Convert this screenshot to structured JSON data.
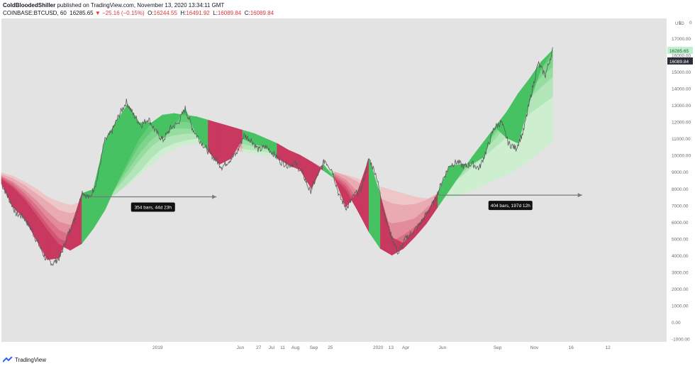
{
  "header": {
    "author": "ColdBloodedShiller",
    "published": "published on TradingView.com, November 13, 2020 13:34:11 GMT",
    "symbol": "COINBASE:BTCUSD, 60",
    "last": "16285.65",
    "change": "▼ −25.16 (−0.15%)",
    "o_label": "O:",
    "o_value": "16244.55",
    "h_label": "H:",
    "h_value": "16491.92",
    "l_label": "L:",
    "l_value": "16089.84",
    "c_label": "C:",
    "c_value": "16089.84"
  },
  "footer": {
    "brand": "TradingView"
  },
  "colors": {
    "background": "#e3e3e3",
    "up_band": "#35c466",
    "down_band": "#e0435f",
    "price_line": "#5a5a5a",
    "current_price_tag": "#2ecc71",
    "low_tag": "#2a2e39"
  },
  "chart_data": {
    "type": "line",
    "title": "",
    "currency": "USD",
    "y_ticks": [
      17000,
      16000,
      15000,
      14000,
      13000,
      12000,
      11000,
      10000,
      9000,
      8000,
      7000,
      6000,
      5000,
      4000,
      3000,
      2000,
      1000,
      0,
      -1000
    ],
    "y_tick_labels": [
      "17000.00",
      "16000.00",
      "15000.00",
      "14000.00",
      "13000.00",
      "12000.00",
      "11000.00",
      "10000.00",
      "9000.00",
      "8000.00",
      "7000.00",
      "6000.00",
      "5000.00",
      "4000.00",
      "3000.00",
      "2000.00",
      "1000.00",
      "0.00",
      "-1000.00"
    ],
    "ylim": [
      -1200,
      18200
    ],
    "y_top_partial_label": "1",
    "y_top_partial_label_right": "0",
    "x_ticks": [
      {
        "label": "2019",
        "t": 8.5
      },
      {
        "label": "Jun",
        "t": 13
      },
      {
        "label": "27",
        "t": 14
      },
      {
        "label": "Jul",
        "t": 14.7
      },
      {
        "label": "11",
        "t": 15.3
      },
      {
        "label": "Aug",
        "t": 16
      },
      {
        "label": "Sep",
        "t": 17
      },
      {
        "label": "25",
        "t": 17.9
      },
      {
        "label": "2020",
        "t": 20.5
      },
      {
        "label": "13",
        "t": 21.2
      },
      {
        "label": "Apr",
        "t": 22
      },
      {
        "label": "Jun",
        "t": 24
      },
      {
        "label": "Sep",
        "t": 27
      },
      {
        "label": "Nov",
        "t": 29
      },
      {
        "label": "16",
        "t": 31
      },
      {
        "label": "12",
        "t": 33
      }
    ],
    "price": {
      "name": "BTCUSD",
      "t": [
        0.0,
        0.4,
        0.8,
        1.2,
        1.6,
        2.0,
        2.4,
        2.8,
        3.2,
        3.6,
        4.0,
        4.4,
        4.8,
        5.2,
        5.6,
        6.0,
        6.4,
        6.8,
        7.2,
        7.6,
        8.0,
        8.4,
        8.8,
        9.2,
        9.6,
        10.0,
        10.4,
        10.8,
        11.2,
        11.6,
        12.0,
        12.4,
        12.8,
        13.2,
        13.6,
        14.0,
        14.4,
        14.8,
        15.2,
        15.6,
        16.0,
        16.4,
        16.8,
        17.2,
        17.6,
        18.0,
        18.4,
        18.8,
        19.2,
        19.6,
        20.0,
        20.4,
        20.8,
        21.2,
        21.6,
        22.0,
        22.4,
        22.8,
        23.2,
        23.6,
        24.0,
        24.4,
        24.8,
        25.2,
        25.6,
        26.0,
        26.4,
        26.8,
        27.2,
        27.6,
        28.0,
        28.4,
        28.8,
        29.2,
        29.6,
        30.0
      ],
      "value": [
        8300,
        7400,
        6500,
        6300,
        5600,
        4700,
        3800,
        3500,
        3900,
        5200,
        6200,
        7800,
        7400,
        8500,
        10800,
        11400,
        12400,
        13200,
        12400,
        11800,
        12200,
        11400,
        10900,
        11600,
        11900,
        12800,
        11600,
        10900,
        10300,
        9800,
        9300,
        9700,
        10100,
        11200,
        10900,
        10300,
        10500,
        10100,
        9600,
        9400,
        9500,
        8900,
        7800,
        8800,
        9700,
        9100,
        7500,
        6800,
        7600,
        8000,
        9800,
        8800,
        6600,
        5200,
        4100,
        5000,
        5400,
        5900,
        6600,
        7300,
        8500,
        9400,
        9600,
        9300,
        9500,
        9200,
        10300,
        11600,
        12000,
        10700,
        10400,
        11400,
        13500,
        15500,
        14800,
        16300
      ]
    },
    "ema_bands": {
      "count": 6,
      "values": [
        [
          8950,
          8750,
          8400,
          8000,
          7500,
          7200,
          7000,
          7200,
          7400,
          7600,
          7800,
          8200,
          8800,
          9400,
          10000,
          10400,
          10600,
          10700,
          10600,
          10500,
          10300,
          10200,
          10100,
          10000,
          9900,
          9800,
          9600,
          9400,
          9200,
          9000,
          8800,
          8600,
          8300,
          8100,
          7900,
          7700,
          7500,
          7400,
          7350,
          7400,
          7600,
          7900,
          8200,
          8500,
          8800,
          9200,
          9700,
          10300,
          10800
        ],
        [
          8850,
          8600,
          8200,
          7700,
          7200,
          6700,
          6500,
          6700,
          7000,
          7300,
          7700,
          8300,
          9000,
          9800,
          10400,
          10700,
          10900,
          11000,
          10900,
          10800,
          10600,
          10400,
          10300,
          10200,
          10100,
          9900,
          9700,
          9500,
          9250,
          9000,
          8750,
          8400,
          7900,
          7400,
          7100,
          7000,
          7050,
          7300,
          7700,
          8200,
          8700,
          9300,
          9900,
          10500,
          11100,
          11800,
          12500,
          13000,
          13500
        ],
        [
          8750,
          8400,
          7900,
          7300,
          6600,
          6000,
          5800,
          6100,
          6700,
          7300,
          8000,
          8800,
          9700,
          10500,
          11000,
          11200,
          11300,
          11300,
          11200,
          11100,
          10900,
          10700,
          10500,
          10400,
          10200,
          10000,
          9800,
          9500,
          9250,
          8900,
          8500,
          7800,
          7000,
          6300,
          5900,
          6000,
          6200,
          6800,
          7400,
          8100,
          8800,
          9600,
          10300,
          11000,
          11800,
          12600,
          13400,
          14100,
          14700
        ],
        [
          8700,
          8300,
          7700,
          7000,
          6200,
          5500,
          5200,
          5600,
          6300,
          7100,
          8100,
          9100,
          10100,
          10900,
          11400,
          11600,
          11600,
          11600,
          11500,
          11300,
          11200,
          11000,
          10800,
          10600,
          10400,
          10100,
          9900,
          9600,
          9200,
          8800,
          8300,
          7400,
          6300,
          5400,
          4800,
          5200,
          5700,
          6400,
          7200,
          8000,
          8900,
          9800,
          10500,
          11300,
          12100,
          13100,
          13900,
          14700,
          15300
        ],
        [
          8620,
          8150,
          7500,
          6700,
          5800,
          5000,
          4700,
          5100,
          5900,
          6900,
          8200,
          9400,
          10600,
          11400,
          11900,
          12000,
          12000,
          11900,
          11800,
          11600,
          11500,
          11300,
          11100,
          10800,
          10500,
          10200,
          9900,
          9500,
          9100,
          8700,
          8100,
          7000,
          5800,
          4800,
          4300,
          4700,
          5300,
          6100,
          7000,
          8000,
          8900,
          9900,
          10700,
          11500,
          12400,
          13400,
          14300,
          15200,
          15900
        ],
        [
          8550,
          8050,
          7350,
          6450,
          5500,
          4650,
          4300,
          4700,
          5600,
          6700,
          8200,
          9600,
          11000,
          11900,
          12400,
          12500,
          12400,
          12300,
          12100,
          11900,
          11700,
          11500,
          11300,
          11000,
          10700,
          10300,
          10000,
          9600,
          9100,
          8600,
          7900,
          6700,
          5400,
          4400,
          4000,
          4400,
          5100,
          5900,
          6900,
          7900,
          8900,
          9900,
          10800,
          11700,
          12600,
          13700,
          14600,
          15600,
          16300
        ]
      ],
      "t": [
        0.0,
        0.625,
        1.25,
        1.875,
        2.5,
        3.125,
        3.75,
        4.375,
        5.0,
        5.625,
        6.25,
        6.875,
        7.5,
        8.125,
        8.75,
        9.375,
        10.0,
        10.625,
        11.25,
        11.875,
        12.5,
        13.125,
        13.75,
        14.375,
        15.0,
        15.625,
        16.25,
        16.875,
        17.5,
        18.125,
        18.75,
        19.375,
        20.0,
        20.625,
        21.25,
        21.875,
        22.5,
        23.125,
        23.75,
        24.375,
        25.0,
        25.625,
        26.25,
        26.875,
        27.5,
        28.125,
        28.75,
        29.375,
        30.0
      ]
    },
    "measure_annotations": [
      {
        "label": "354 bars, 44d 23h",
        "t_start": 4.8,
        "t_end": 11.7,
        "y": 7500
      },
      {
        "label": "404 bars, 197d 12h",
        "t_start": 23.8,
        "t_end": 31.6,
        "y": 7600
      }
    ],
    "price_tags": [
      {
        "label": "16285.65",
        "y": 16285.65,
        "kind": "current"
      },
      {
        "label": "16089.84",
        "y": 15650,
        "kind": "close"
      }
    ],
    "xlim": [
      0,
      36.2
    ]
  }
}
